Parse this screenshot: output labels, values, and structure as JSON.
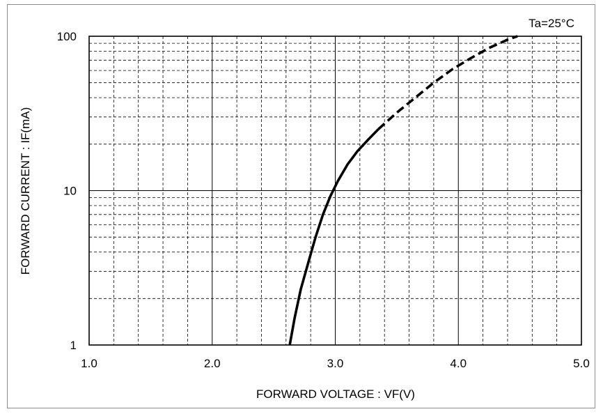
{
  "chart_data": {
    "type": "line",
    "annotation": "Ta=25°C",
    "xlabel": "FORWARD VOLTAGE : VF(V)",
    "ylabel": "FORWARD CURRENT : IF(mA)",
    "xlim": [
      1.0,
      5.0
    ],
    "ylim": [
      1,
      100
    ],
    "y_scale": "log",
    "grid": true,
    "x_ticks": [
      "1.0",
      "2.0",
      "3.0",
      "4.0",
      "5.0"
    ],
    "x_tick_values": [
      1.0,
      2.0,
      3.0,
      4.0,
      5.0
    ],
    "y_ticks": [
      "1",
      "10",
      "100"
    ],
    "y_tick_values": [
      1,
      10,
      100
    ],
    "series": [
      {
        "style": "solid",
        "color": "#000000",
        "points": [
          [
            2.63,
            1.0
          ],
          [
            2.67,
            1.5
          ],
          [
            2.72,
            2.3
          ],
          [
            2.78,
            3.4
          ],
          [
            2.84,
            5.0
          ],
          [
            2.9,
            7.0
          ],
          [
            2.96,
            9.2
          ],
          [
            3.02,
            11.5
          ],
          [
            3.1,
            14.8
          ],
          [
            3.18,
            18.0
          ],
          [
            3.27,
            21.5
          ],
          [
            3.35,
            25.0
          ]
        ]
      },
      {
        "style": "dashed",
        "color": "#000000",
        "points": [
          [
            3.35,
            25.0
          ],
          [
            3.5,
            32.0
          ],
          [
            3.65,
            40.0
          ],
          [
            3.8,
            50.0
          ],
          [
            3.95,
            61.0
          ],
          [
            4.1,
            72.0
          ],
          [
            4.25,
            84.0
          ],
          [
            4.4,
            95.0
          ],
          [
            4.48,
            100.0
          ]
        ]
      }
    ]
  }
}
